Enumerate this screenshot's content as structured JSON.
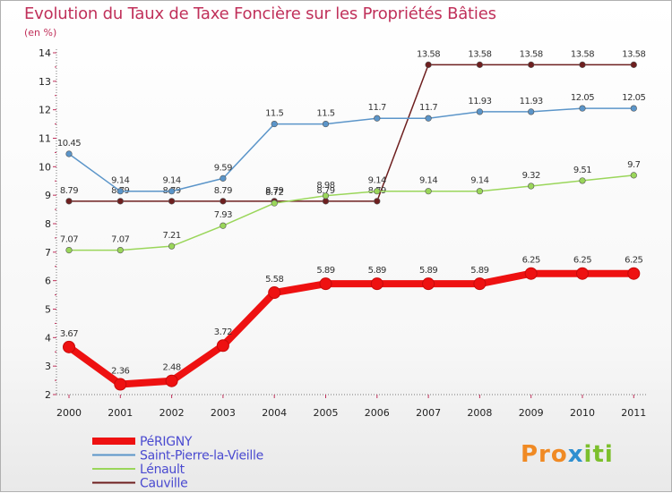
{
  "title": "Evolution du Taux de Taxe Foncière sur les Propriétés Bâties",
  "unit_label": "(en %)",
  "logo": {
    "parts": [
      "Pro",
      "x",
      "iti"
    ],
    "colors": [
      "#f08a24",
      "#2e8fd0",
      "#7cbf2c"
    ]
  },
  "chart_data": {
    "type": "line",
    "title": "Evolution du Taux de Taxe Foncière sur les Propriétés Bâties",
    "xlabel": "",
    "ylabel": "(en %)",
    "categories": [
      "2000",
      "2001",
      "2002",
      "2003",
      "2004",
      "2005",
      "2006",
      "2007",
      "2008",
      "2009",
      "2010",
      "2011"
    ],
    "ylim": [
      2,
      14
    ],
    "yticks": [
      2,
      3,
      4,
      5,
      6,
      7,
      8,
      9,
      10,
      11,
      12,
      13,
      14
    ],
    "grid": false,
    "legend_position": "bottom-left",
    "series": [
      {
        "name": "Cauville",
        "color": "#6e1f1f",
        "values": [
          8.79,
          8.79,
          8.79,
          8.79,
          8.79,
          8.79,
          8.79,
          13.58,
          13.58,
          13.58,
          13.58,
          13.58
        ],
        "labels": [
          "8.79",
          "8.79",
          "8.79",
          "8.79",
          "8.79",
          "8.79",
          "8.79",
          "13.58",
          "13.58",
          "13.58",
          "13.58",
          "13.58"
        ]
      },
      {
        "name": "Lénault",
        "color": "#9ad65a",
        "values": [
          7.07,
          7.07,
          7.21,
          7.93,
          8.72,
          8.98,
          9.14,
          9.14,
          9.14,
          9.32,
          9.51,
          9.7
        ],
        "labels": [
          "7.07",
          "7.07",
          "7.21",
          "7.93",
          "8.72",
          "8.98",
          "9.14",
          "9.14",
          "9.14",
          "9.32",
          "9.51",
          "9.7"
        ]
      },
      {
        "name": "Saint-Pierre-la-Vieille",
        "color": "#5b95c9",
        "values": [
          10.45,
          9.14,
          9.14,
          9.59,
          11.5,
          11.5,
          11.7,
          11.7,
          11.93,
          11.93,
          12.05,
          12.05
        ],
        "labels": [
          "10.45",
          "9.14",
          "9.14",
          "9.59",
          "11.5",
          "11.5",
          "11.7",
          "11.7",
          "11.93",
          "11.93",
          "12.05",
          "12.05"
        ]
      },
      {
        "name": "PéRIGNY",
        "color": "#ee1111",
        "values": [
          3.67,
          2.36,
          2.48,
          3.72,
          5.58,
          5.89,
          5.89,
          5.89,
          5.89,
          6.25,
          6.25,
          6.25
        ],
        "labels": [
          "3.67",
          "2.36",
          "2.48",
          "3.72",
          "5.58",
          "5.89",
          "5.89",
          "5.89",
          "5.89",
          "6.25",
          "6.25",
          "6.25"
        ]
      }
    ],
    "legend_order": [
      "PéRIGNY",
      "Saint-Pierre-la-Vieille",
      "Lénault",
      "Cauville"
    ]
  }
}
